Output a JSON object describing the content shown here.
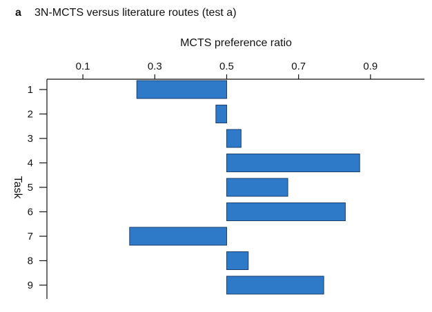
{
  "panel": {
    "letter": "a",
    "title": "3N-MCTS versus literature routes (test a)"
  },
  "chart_data": {
    "type": "bar",
    "orientation": "horizontal",
    "xlabel": "MCTS preference ratio",
    "ylabel": "Task",
    "x_axis_position": "top",
    "xlim": [
      0.0,
      1.05
    ],
    "x_ticks": [
      0.1,
      0.3,
      0.5,
      0.7,
      0.9
    ],
    "x_tick_labels": [
      "0.1",
      "0.3",
      "0.5",
      "0.7",
      "0.9"
    ],
    "baseline": 0.5,
    "categories": [
      "1",
      "2",
      "3",
      "4",
      "5",
      "6",
      "7",
      "8",
      "9"
    ],
    "values": [
      0.25,
      0.47,
      0.54,
      0.87,
      0.67,
      0.83,
      0.23,
      0.56,
      0.77
    ],
    "bar_color": "#2f7ac8",
    "bar_edge_color": "#1a3f6e",
    "grid": false
  }
}
